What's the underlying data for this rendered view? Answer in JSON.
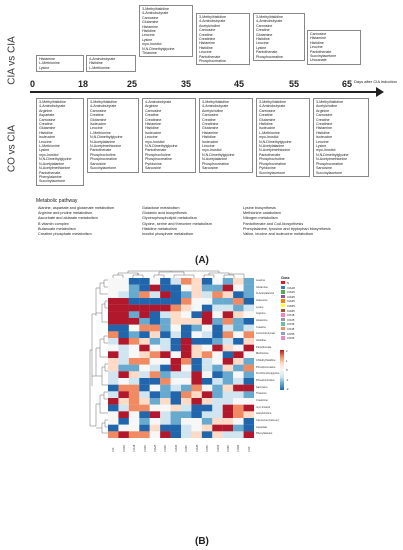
{
  "side_labels": {
    "top": "CIA vs CIA",
    "bottom": "CO vs CIA"
  },
  "timeline": {
    "ticks": [
      "0",
      "18",
      "25",
      "35",
      "45",
      "55",
      "65"
    ],
    "axis_label": "Days after CIA induction"
  },
  "top_boxes": [
    {
      "items": [
        "Histamine",
        "L-Methionine",
        "Lysine"
      ]
    },
    {
      "items": [
        "4-Aminobutyrate",
        "Histidine",
        "L-Methionine"
      ]
    },
    {
      "items": [
        "3-Methylhistidine",
        "4-Aminobutyrate",
        "Carnosine",
        "Glutamine",
        "Histamine",
        "Histidine",
        "Leucine",
        "Lysine",
        "myo-Inositol",
        "N,N-Dimethylglycine",
        "Thiamine"
      ]
    },
    {
      "items": [
        "3-Methylhistidine",
        "4-Aminobutyrate",
        "Acetylcholine",
        "Carnosine",
        "Creatine",
        "Creatinine",
        "Histamine",
        "Histidine",
        "Leucine",
        "Pantothenate",
        "Phosphocreatine"
      ]
    },
    {
      "items": [
        "3-Methylhistidine",
        "4-Aminobutyrate",
        "Carnosine",
        "Creatine",
        "Glutamine",
        "Histidine",
        "Leucine",
        "Lysine",
        "Pantothenate",
        "Phosphocreatine"
      ]
    },
    {
      "items": [
        "Carnosine",
        "Histamine",
        "Histidine",
        "Leucine",
        "Pantothenate",
        "Succinylacetone",
        "Urocanate"
      ]
    }
  ],
  "bottom_boxes": [
    {
      "items": [
        "3-Methylhistidine",
        "4-Aminobutyrate",
        "Arginine",
        "Aspartate",
        "Carnosine",
        "Creatine",
        "Glutamine",
        "Histidine",
        "Isoleucine",
        "Leucine",
        "L-Methionine",
        "Lysine",
        "myo-Inositol",
        "N,N-Dimethylglycine",
        "N-Acetylalanine",
        "N-Acetylmethionine",
        "Pantothenate",
        "Phenylalanine",
        "Succinylacetone"
      ]
    },
    {
      "items": [
        "3-Methylhistidine",
        "4-Aminobutyrate",
        "Carnosine",
        "Creatine",
        "Glutamine",
        "Isoleucine",
        "Leucine",
        "L-Methionine",
        "N,N-Dimethylglycine",
        "N-Acetylalanine",
        "N-Acetylmethionine",
        "Pantothenate",
        "Phosphocholine",
        "Phosphocreatine",
        "Sarcosine",
        "Succinylacetone"
      ]
    },
    {
      "items": [
        "4-Aminobutyrate",
        "Arginine",
        "Carnosine",
        "Creatine",
        "Creatinine",
        "Histamine",
        "Histidine",
        "Isoleucine",
        "Leucine",
        "myo-Inositol",
        "N,N-Dimethylglycine",
        "Pantothenate",
        "Phosphocholine",
        "Phosphocreatine",
        "Pyridoxine",
        "Sarcosine"
      ]
    },
    {
      "items": [
        "3-Methylhistidine",
        "4-Aminobutyrate",
        "Acetylcholine",
        "Carnosine",
        "Creatine",
        "Creatinine",
        "Glutamine",
        "Histamine",
        "Histidine",
        "Isoleucine",
        "Leucine",
        "myo-Inositol",
        "N,N-Dimethylglycine",
        "N-Acetylalanine",
        "Phosphocreatine",
        "Sarcosine"
      ]
    },
    {
      "items": [
        "3-Methylhistidine",
        "4-Aminobutyrate",
        "Carnosine",
        "Creatine",
        "Glutamine",
        "Histidine",
        "Isoleucine",
        "L-Methionine",
        "myo-Inositol",
        "N,N-Dimethylglycine",
        "N-Acetylalanine",
        "N-Acetylmethionine",
        "Pantothenate",
        "Phosphocholine",
        "Phosphocreatine",
        "Pyridoxine",
        "Succinylacetone"
      ]
    },
    {
      "items": [
        "3-Methylhistidine",
        "Acetylcholine",
        "Arginine",
        "Carnosine",
        "Creatine",
        "Creatinine",
        "Histamine",
        "Histidine",
        "Isoleucine",
        "Leucine",
        "Lysine",
        "myo-Inositol",
        "N,N-Dimethylglycine",
        "N-Acetylmethionine",
        "Phosphocreatine",
        "Sarcosine",
        "Succinylacetone"
      ]
    }
  ],
  "legend": {
    "title": "Metabolic pathway",
    "col1": [
      "Alanine, aspartate and glutamate metabolism",
      "Arginine and proline metabolism",
      "Ascorbate and aldarate metabolism",
      "B vitamin complex",
      "Butanoate metabolism",
      "Creatine phosphate metabolism"
    ],
    "col2": [
      "Galactose metabolism",
      "Glutamic acid biosynthesis",
      "Glycerophospholipid metabolism",
      "Glycine, serine and threonine metabolism",
      "Histidine metabolism",
      "Inositol phosphate metabolism"
    ],
    "col3": [
      "Lysine biosynthesis",
      "Methionine catabolism",
      "Nitrogen metabolism",
      "Pantothenate and CoA biosynthesis",
      "Phenylalanine, tyrosine and tryptophan biosynthesis",
      "Valine, leucine and isoleucine metabolism"
    ]
  },
  "panels": {
    "a": "(A)",
    "b": "(B)"
  },
  "heatmap": {
    "rows": [
      "Leucine",
      "Glutamine",
      "N-Acetylalanine",
      "Isoleucine",
      "Lysine",
      "Arginine",
      "Histamine",
      "Creatine",
      "4-Aminobutyrate",
      "Histidine",
      "Pantothenate",
      "Methionine",
      "3-Methylhistidine",
      "Phosphocreatine",
      "N,N-Dimethylglycine",
      "Phosphocholine",
      "Sarcosine",
      "Thiamine",
      "Creatinine",
      "myo-Inositol",
      "Acetylcholine",
      "Carnosine (beta-al.)",
      "Aspartate",
      "Phenylalanine"
    ],
    "cols": [
      "CIA",
      "CO18",
      "CIA18",
      "CO25",
      "CIA25",
      "CO35",
      "CIA35",
      "CO45",
      "CIA45",
      "CO55",
      "CIA55",
      "CO65",
      "CIA65",
      "CO0"
    ],
    "key_title": "Class",
    "key": [
      {
        "label": "N",
        "color": "#e41a1c"
      },
      {
        "label": "CIA18",
        "color": "#377eb8"
      },
      {
        "label": "CIA25",
        "color": "#4daf4a"
      },
      {
        "label": "CIA35",
        "color": "#984ea3"
      },
      {
        "label": "CIA45",
        "color": "#ff7f00"
      },
      {
        "label": "CIA55",
        "color": "#ffff33"
      },
      {
        "label": "CIA65",
        "color": "#a65628"
      },
      {
        "label": "CO18",
        "color": "#f781bf"
      },
      {
        "label": "CO25",
        "color": "#999999"
      },
      {
        "label": "CO35",
        "color": "#66c2a5"
      },
      {
        "label": "CO45",
        "color": "#fc8d62"
      },
      {
        "label": "CO55",
        "color": "#8da0cb"
      },
      {
        "label": "CO65",
        "color": "#e78ac3"
      }
    ],
    "scale": [
      {
        "label": "2"
      },
      {
        "label": "1"
      },
      {
        "label": "0"
      },
      {
        "label": "-1"
      },
      {
        "label": "-2"
      }
    ]
  }
}
